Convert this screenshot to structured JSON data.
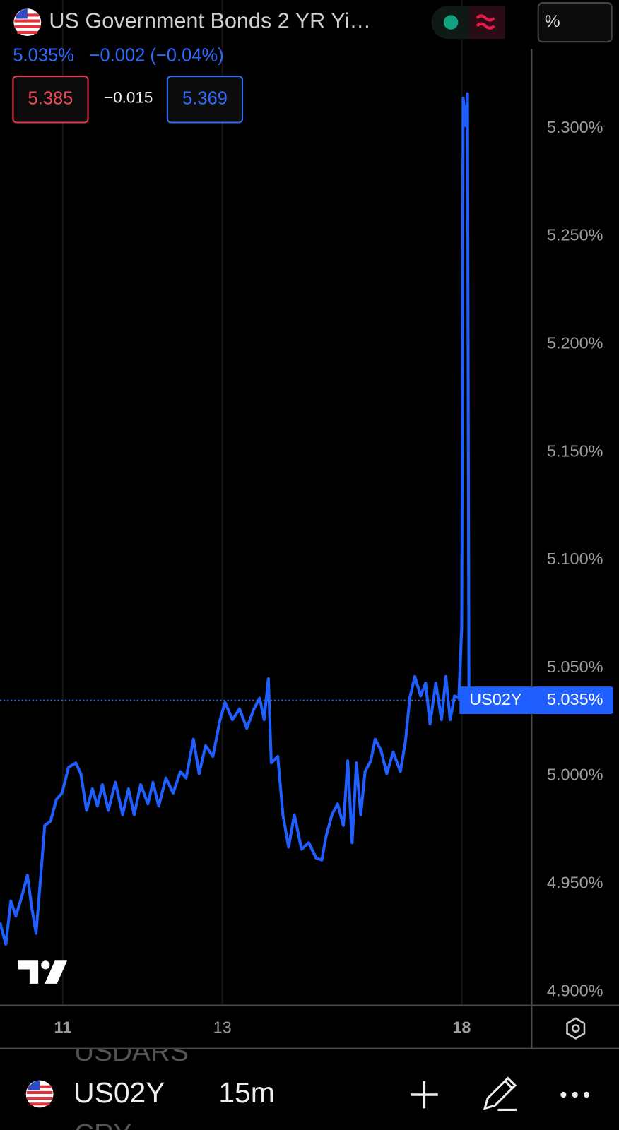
{
  "header": {
    "title": "US Government Bonds 2 YR Yi…",
    "price": "5.035%",
    "change": "−0.002 (−0.04%)",
    "bid": "5.385",
    "spread": "−0.015",
    "ask": "5.369",
    "unit_button": "%"
  },
  "chart_data": {
    "type": "line",
    "x": [
      -0.787,
      -0.714,
      -0.651,
      -0.588,
      -0.515,
      -0.443,
      -0.389,
      -0.335,
      -0.28,
      -0.226,
      -0.154,
      -0.081,
      -0.009,
      0.072,
      0.163,
      0.226,
      0.298,
      0.371,
      0.434,
      0.497,
      0.57,
      0.66,
      0.75,
      0.823,
      0.895,
      0.976,
      1.067,
      1.13,
      1.202,
      1.293,
      1.383,
      1.474,
      1.546,
      1.637,
      1.709,
      1.79,
      1.881,
      1.971,
      2.034,
      2.125,
      2.215,
      2.306,
      2.396,
      2.468,
      2.523,
      2.577,
      2.613,
      2.694,
      2.758,
      2.83,
      2.902,
      2.993,
      3.083,
      3.174,
      3.246,
      3.3,
      3.373,
      3.445,
      3.517,
      3.571,
      3.626,
      3.68,
      3.734,
      3.788,
      3.861,
      3.915,
      3.987,
      4.06,
      4.141,
      4.231,
      4.295,
      4.349,
      4.412,
      4.485,
      4.548,
      4.602,
      4.675,
      4.747,
      4.801,
      4.855,
      4.91,
      4.964,
      5.0,
      5.018,
      5.054,
      5.072,
      5.09,
      5.136
    ],
    "series": [
      {
        "name": "US02Y",
        "color": "#1f5fff",
        "values": [
          4.932,
          4.922,
          4.942,
          4.935,
          4.944,
          4.954,
          4.939,
          4.927,
          4.952,
          4.977,
          4.979,
          4.989,
          4.992,
          5.004,
          5.006,
          5.001,
          4.984,
          4.994,
          4.986,
          4.996,
          4.984,
          4.997,
          4.982,
          4.994,
          4.982,
          4.996,
          4.987,
          4.997,
          4.986,
          4.999,
          4.992,
          5.002,
          4.999,
          5.017,
          5.001,
          5.014,
          5.009,
          5.026,
          5.034,
          5.026,
          5.031,
          5.022,
          5.031,
          5.036,
          5.026,
          5.045,
          5.006,
          5.009,
          4.982,
          4.967,
          4.982,
          4.966,
          4.969,
          4.962,
          4.961,
          4.972,
          4.982,
          4.987,
          4.977,
          5.007,
          4.969,
          5.006,
          4.982,
          5.002,
          5.007,
          5.017,
          5.012,
          5.001,
          5.011,
          5.002,
          5.016,
          5.036,
          5.046,
          5.037,
          5.043,
          5.024,
          5.043,
          5.026,
          5.046,
          5.026,
          5.037,
          5.036,
          5.069,
          5.314,
          5.301,
          5.316,
          5.041,
          5.035
        ]
      }
    ],
    "xlim": [
      -0.787,
      5.877
    ],
    "xticks": [
      {
        "value": 0,
        "label": "11"
      },
      {
        "value": 2,
        "label": "13"
      },
      {
        "value": 5,
        "label": "18"
      }
    ],
    "ylim": [
      4.8937,
      5.3594
    ],
    "yticks": [
      {
        "value": 4.9,
        "label": "4.900%"
      },
      {
        "value": 4.95,
        "label": "4.950%"
      },
      {
        "value": 5.0,
        "label": "5.000%"
      },
      {
        "value": 5.05,
        "label": "5.050%"
      },
      {
        "value": 5.1,
        "label": "5.100%"
      },
      {
        "value": 5.15,
        "label": "5.150%"
      },
      {
        "value": 5.2,
        "label": "5.200%"
      },
      {
        "value": 5.25,
        "label": "5.250%"
      },
      {
        "value": 5.3,
        "label": "5.300%"
      }
    ],
    "grid": "x",
    "price_line": {
      "name": "US02Y",
      "value": 5.035,
      "label": "5.035%"
    }
  },
  "bottom_bar": {
    "symbol": "US02Y",
    "interval": "15m",
    "ghost_above": "USDARS",
    "ghost_below": "CRY"
  }
}
